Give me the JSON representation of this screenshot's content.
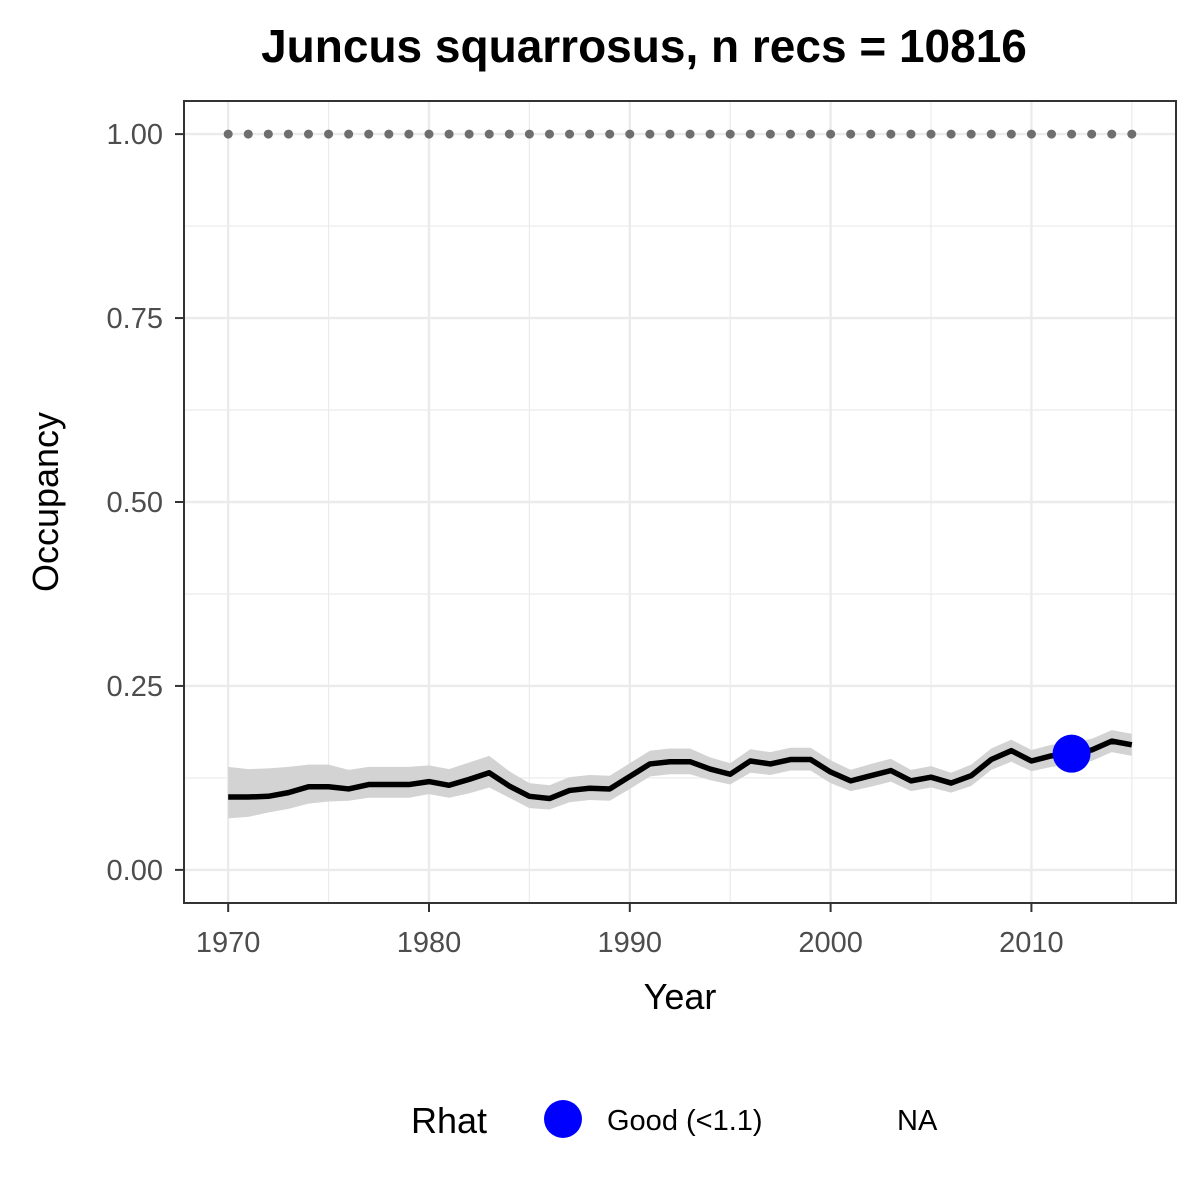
{
  "chart_data": {
    "type": "line",
    "title": "Juncus squarrosus, n recs = 10816",
    "xlabel": "Year",
    "ylabel": "Occupancy",
    "xlim": [
      1967.8,
      2017.2
    ],
    "ylim": [
      -0.045,
      1.045
    ],
    "x_ticks": [
      1970,
      1980,
      1990,
      2000,
      2010
    ],
    "x_tick_labels": [
      "1970",
      "1980",
      "1990",
      "2000",
      "2010"
    ],
    "y_ticks": [
      0,
      0.25,
      0.5,
      0.75,
      1.0
    ],
    "y_tick_labels": [
      "0.00",
      "0.25",
      "0.50",
      "0.75",
      "1.00"
    ],
    "grid": true,
    "x": [
      1970,
      1971,
      1972,
      1973,
      1974,
      1975,
      1976,
      1977,
      1978,
      1979,
      1980,
      1981,
      1982,
      1983,
      1984,
      1985,
      1986,
      1987,
      1988,
      1989,
      1990,
      1991,
      1992,
      1993,
      1994,
      1995,
      1996,
      1997,
      1998,
      1999,
      2000,
      2001,
      2002,
      2003,
      2004,
      2005,
      2006,
      2007,
      2008,
      2009,
      2010,
      2011,
      2012,
      2013,
      2014,
      2015
    ],
    "series": [
      {
        "values": [
          0.099,
          0.099,
          0.1,
          0.105,
          0.113,
          0.113,
          0.11,
          0.116,
          0.116,
          0.116,
          0.12,
          0.115,
          0.123,
          0.132,
          0.114,
          0.1,
          0.097,
          0.108,
          0.111,
          0.11,
          0.127,
          0.144,
          0.147,
          0.147,
          0.137,
          0.13,
          0.148,
          0.144,
          0.15,
          0.15,
          0.133,
          0.121,
          0.128,
          0.135,
          0.121,
          0.126,
          0.118,
          0.128,
          0.15,
          0.162,
          0.148,
          0.155,
          0.158,
          0.163,
          0.175,
          0.17
        ],
        "lower": [
          0.07,
          0.072,
          0.078,
          0.083,
          0.09,
          0.093,
          0.094,
          0.098,
          0.098,
          0.098,
          0.103,
          0.098,
          0.104,
          0.112,
          0.098,
          0.084,
          0.082,
          0.092,
          0.095,
          0.094,
          0.11,
          0.127,
          0.13,
          0.13,
          0.122,
          0.116,
          0.132,
          0.129,
          0.135,
          0.135,
          0.118,
          0.107,
          0.113,
          0.12,
          0.107,
          0.112,
          0.105,
          0.114,
          0.136,
          0.147,
          0.134,
          0.14,
          0.143,
          0.148,
          0.16,
          0.155
        ],
        "upper": [
          0.14,
          0.137,
          0.138,
          0.14,
          0.143,
          0.143,
          0.136,
          0.14,
          0.14,
          0.14,
          0.142,
          0.137,
          0.146,
          0.155,
          0.134,
          0.118,
          0.115,
          0.126,
          0.129,
          0.128,
          0.145,
          0.162,
          0.165,
          0.165,
          0.153,
          0.145,
          0.164,
          0.16,
          0.166,
          0.166,
          0.149,
          0.136,
          0.144,
          0.151,
          0.136,
          0.141,
          0.132,
          0.143,
          0.165,
          0.177,
          0.163,
          0.17,
          0.173,
          0.178,
          0.19,
          0.185
        ],
        "color": "#000000",
        "ribbon_color": "#d3d3d3"
      },
      {
        "values": [
          1,
          1,
          1,
          1,
          1,
          1,
          1,
          1,
          1,
          1,
          1,
          1,
          1,
          1,
          1,
          1,
          1,
          1,
          1,
          1,
          1,
          1,
          1,
          1,
          1,
          1,
          1,
          1,
          1,
          1,
          1,
          1,
          1,
          1,
          1,
          1,
          1,
          1,
          1,
          1,
          1,
          1,
          1,
          1,
          1,
          1
        ],
        "style": "dotted",
        "color": "#6e6e6e"
      }
    ],
    "rhat_points": [
      {
        "x": 2012,
        "y": 0.158,
        "category": "Good (<1.1)",
        "color": "#0000ff"
      }
    ],
    "legend": {
      "position": "bottom",
      "title": "Rhat",
      "entries": [
        {
          "label": "Good (<1.1)",
          "color": "#0000ff",
          "marker": "circle"
        },
        {
          "label": "NA",
          "color": null,
          "marker": "none"
        }
      ]
    }
  }
}
